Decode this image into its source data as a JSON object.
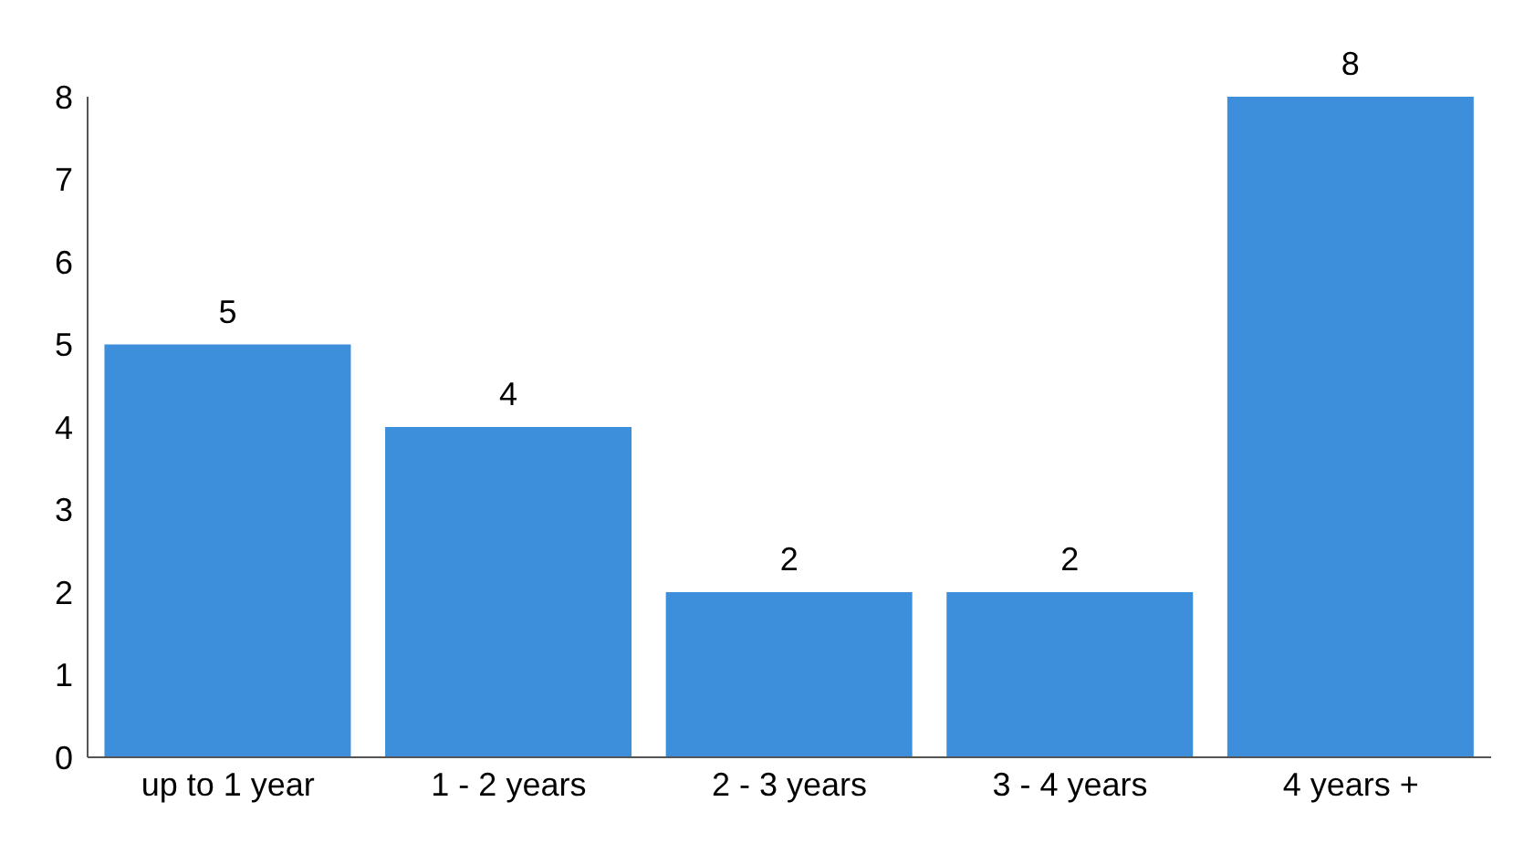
{
  "chart_data": {
    "type": "bar",
    "categories": [
      "up to 1 year",
      "1 - 2 years",
      "2 - 3 years",
      "3 - 4 years",
      "4 years +"
    ],
    "values": [
      5,
      4,
      2,
      2,
      8
    ],
    "color": "#3d8fdc",
    "ylim": [
      0,
      8
    ],
    "yticks": [
      0,
      1,
      2,
      3,
      4,
      5,
      6,
      7,
      8
    ],
    "data_labels": true
  }
}
